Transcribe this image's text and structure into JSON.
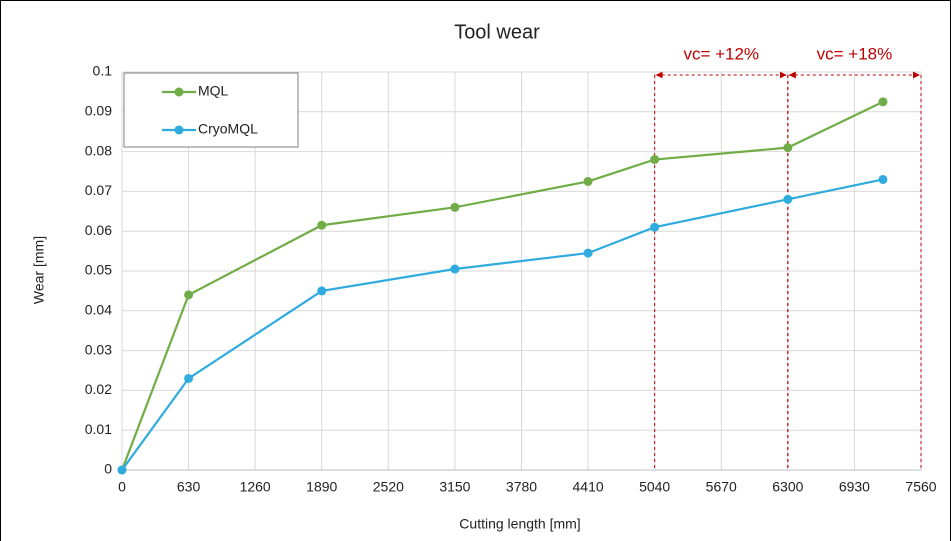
{
  "chart_data": {
    "type": "line",
    "title": "Tool wear",
    "x_label": "Cutting length [mm]",
    "y_label": "Wear [mm]",
    "x": [
      0,
      630,
      1890,
      3150,
      4410,
      5040,
      6300,
      7200
    ],
    "series": [
      {
        "name": "MQL",
        "color": "#70ad47",
        "values": [
          0,
          0.044,
          0.0615,
          0.066,
          0.0725,
          0.078,
          0.081,
          0.0925
        ]
      },
      {
        "name": "CryoMQL",
        "color": "#2fabe0",
        "values": [
          0,
          0.023,
          0.045,
          0.0505,
          0.0545,
          0.061,
          0.068,
          0.073
        ]
      }
    ],
    "xlim": [
      0,
      7560
    ],
    "xticks": [
      0,
      630,
      1260,
      1890,
      2520,
      3150,
      3780,
      4410,
      5040,
      5670,
      6300,
      6930,
      7560
    ],
    "ylim": [
      0,
      0.1
    ],
    "yticks": [
      0,
      0.01,
      0.02,
      0.03,
      0.04,
      0.05,
      0.06,
      0.07,
      0.08,
      0.09,
      0.1
    ],
    "grid": true,
    "legend": "upper left",
    "annotations": [
      {
        "text": "vc= +12%",
        "x": [
          5040,
          6300
        ],
        "color": "#c00000"
      },
      {
        "text": "vc= +18%",
        "x": [
          6300,
          7560
        ],
        "color": "#c00000"
      }
    ]
  }
}
